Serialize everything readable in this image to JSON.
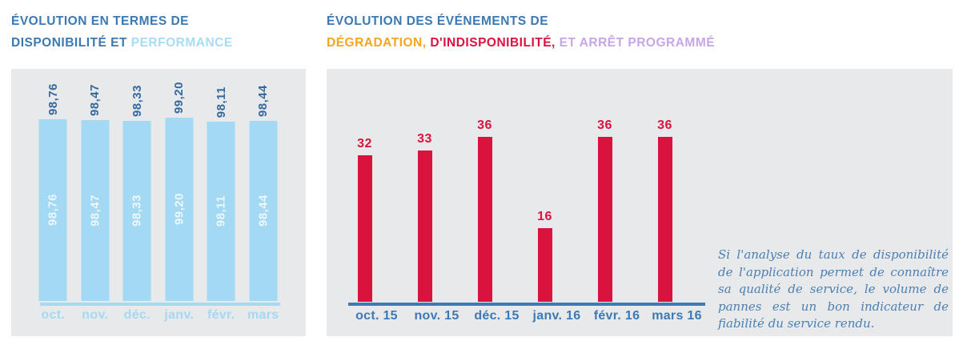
{
  "headers": {
    "left": {
      "line1": "ÉVOLUTION EN TERMES DE",
      "line2_dark": "DISPONIBILITÉ ET",
      "line2_light": "PERFORMANCE"
    },
    "right": {
      "line1": "ÉVOLUTION DES ÉVÉNEMENTS DE",
      "line2_orange": "DÉGRADATION,",
      "line2_red": "D'INDISPONIBILITÉ,",
      "line2_purple": "ET ARRÊT PROGRAMMÉ"
    }
  },
  "chart_data": [
    {
      "id": "availability",
      "type": "bar",
      "title": "ÉVOLUTION EN TERMES DE DISPONIBILITÉ ET PERFORMANCE",
      "categories": [
        "oct.",
        "nov.",
        "déc.",
        "janv.",
        "févr.",
        "mars"
      ],
      "values": [
        98.76,
        98.47,
        98.33,
        99.2,
        98.11,
        98.44
      ],
      "value_labels": [
        "98,76",
        "98,47",
        "98,33",
        "99,20",
        "98,11",
        "98,44"
      ],
      "ylim": [
        50,
        99.2
      ],
      "grid": false,
      "legend": null,
      "value_label_position": "above-and-inside-rotated",
      "bar_color": "#a3d9f2",
      "value_label_color": "#34689d",
      "inner_label_color": "rgba(255,255,255,0.8)",
      "axis_line_color": "#a3d9f2",
      "category_label_color": "#a3d9f2"
    },
    {
      "id": "events",
      "type": "bar",
      "title": "ÉVOLUTION DES ÉVÉNEMENTS DE DÉGRADATION, D'INDISPONIBILITÉ, ET ARRÊT PROGRAMMÉ",
      "categories": [
        "oct. 15",
        "nov. 15",
        "déc. 15",
        "janv. 16",
        "févr. 16",
        "mars 16"
      ],
      "values": [
        32,
        33,
        36,
        16,
        36,
        36
      ],
      "value_labels": [
        "32",
        "33",
        "36",
        "16",
        "36",
        "36"
      ],
      "ylim": [
        0,
        36
      ],
      "grid": false,
      "legend": null,
      "value_label_position": "above",
      "bar_color": "#d9123e",
      "value_label_color": "#d9123e",
      "axis_line_color": "#3d7ab5",
      "category_label_color": "#3d7ab5"
    }
  ],
  "note": {
    "text": "Si l'analyse du taux de disponibilité de l'application permet de connaître sa qualité de service, le volume de pannes est un bon indicateur de fiabilité du service rendu."
  },
  "colors": {
    "title_blue": "#3a79b3",
    "title_light_blue": "#a6dcf5",
    "title_orange": "#f7a420",
    "title_red": "#d9123e",
    "title_purple": "#c8a4e9",
    "panel_bg": "#e8e9eb",
    "note_text": "#4b80b4"
  }
}
